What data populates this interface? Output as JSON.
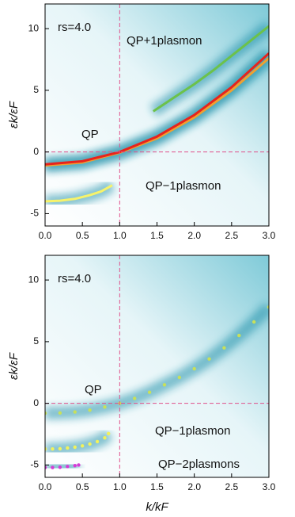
{
  "chart_data": [
    {
      "type": "line",
      "y_label": "εk/εF",
      "annotations": [
        "rs=4.0",
        "QP+1plasmon",
        "QP",
        "QP−1plasmon"
      ],
      "xlim": [
        0,
        3
      ],
      "ylim": [
        -6,
        12
      ],
      "xticks": [
        {
          "value": 0,
          "label": "0.0"
        },
        {
          "value": 0.5,
          "label": "0.5"
        },
        {
          "value": 1,
          "label": "1.0"
        },
        {
          "value": 1.5,
          "label": "1.5"
        },
        {
          "value": 2,
          "label": "2.0"
        },
        {
          "value": 2.5,
          "label": "2.5"
        },
        {
          "value": 3,
          "label": "3.0"
        }
      ],
      "yticks": [
        -5,
        0,
        5,
        10
      ],
      "ref_x": 1,
      "ref_y": 0,
      "series": [
        {
          "mode": "line",
          "color": "#f0a030",
          "x": [
            0,
            0.5,
            1,
            1.5,
            2,
            2.5,
            3
          ],
          "values": [
            -1.1,
            -0.85,
            -0.05,
            1.1,
            2.8,
            5,
            7.6
          ]
        },
        {
          "mode": "line",
          "color": "#e8231c",
          "x": [
            0,
            0.5,
            1,
            1.5,
            2,
            2.5,
            3
          ],
          "values": [
            -1,
            -0.75,
            0,
            1.25,
            3,
            5.25,
            8
          ]
        },
        {
          "mode": "line",
          "color": "#6cc24a",
          "x": [
            1.45,
            1.75,
            2,
            2.25,
            2.5,
            2.75,
            3
          ],
          "values": [
            3.3,
            4.5,
            5.5,
            6.6,
            7.8,
            9,
            10.2
          ]
        },
        {
          "mode": "line",
          "color": "#f7f36a",
          "x": [
            0,
            0.2,
            0.4,
            0.6,
            0.75,
            0.9
          ],
          "values": [
            -4,
            -3.95,
            -3.8,
            -3.5,
            -3.2,
            -2.7
          ]
        }
      ]
    },
    {
      "type": "line",
      "y_label": "εk/εF",
      "x_label": "k/kF",
      "annotations": [
        "rs=4.0",
        "QP",
        "QP−1plasmon",
        "QP−2plasmons"
      ],
      "xlim": [
        0,
        3
      ],
      "ylim": [
        -6,
        12
      ],
      "xticks": [
        {
          "value": 0,
          "label": "0.0"
        },
        {
          "value": 0.5,
          "label": "0.5"
        },
        {
          "value": 1,
          "label": "1.0"
        },
        {
          "value": 1.5,
          "label": "1.5"
        },
        {
          "value": 2,
          "label": "2.0"
        },
        {
          "value": 2.5,
          "label": "2.5"
        },
        {
          "value": 3,
          "label": "3.0"
        }
      ],
      "yticks": [
        -5,
        0,
        5,
        10
      ],
      "ref_x": 1,
      "ref_y": 0,
      "series": [
        {
          "mode": "markers",
          "color": "#c8e05a",
          "x": [
            0,
            0.2,
            0.4,
            0.6,
            0.8,
            1,
            1.2,
            1.4,
            1.6,
            1.8,
            2,
            2.2,
            2.4,
            2.6,
            2.8,
            3
          ],
          "values": [
            -0.8,
            -0.78,
            -0.7,
            -0.55,
            -0.3,
            0,
            0.4,
            0.9,
            1.5,
            2.1,
            2.8,
            3.6,
            4.5,
            5.5,
            6.6,
            7.8
          ]
        },
        {
          "mode": "markers",
          "color": "#f2f25a",
          "x": [
            0,
            0.1,
            0.2,
            0.3,
            0.4,
            0.5,
            0.6,
            0.7,
            0.8,
            0.85
          ],
          "values": [
            -3.7,
            -3.7,
            -3.68,
            -3.62,
            -3.55,
            -3.45,
            -3.3,
            -3.1,
            -2.8,
            -2.45
          ]
        },
        {
          "mode": "markers",
          "color": "#d63bd6",
          "x": [
            0,
            0.1,
            0.2,
            0.3,
            0.4,
            0.45
          ],
          "values": [
            -5.2,
            -5.2,
            -5.18,
            -5.12,
            -5.05,
            -5
          ]
        }
      ]
    }
  ]
}
